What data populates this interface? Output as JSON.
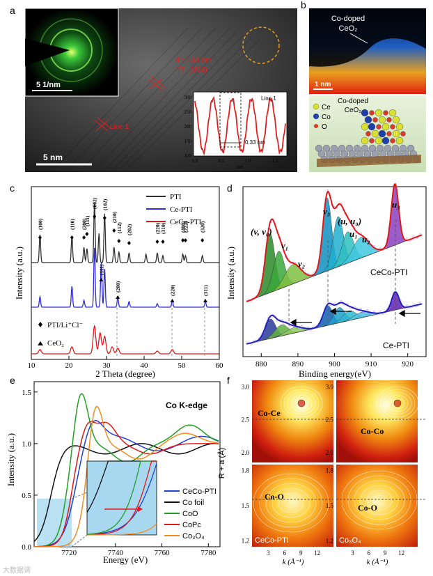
{
  "panels": {
    "a": {
      "label": "a",
      "inset_scale": "5 1/nm",
      "scale_bar": "5 nm",
      "d_spacing": "d=0.33 nm",
      "plane": "PTI (002)",
      "line_label": "Line 1",
      "profile_title": "Line 1",
      "profile_annotation": "0.33 nm",
      "profile_xlabel": "nm",
      "profile_yticks": [
        "300",
        "250",
        "200",
        "150",
        "100"
      ],
      "profile_xticks": [
        "0.0",
        "0.5",
        "1.0",
        "1.5"
      ]
    },
    "b": {
      "label": "b",
      "top_label_line1": "Co-doped",
      "top_label_line2": "CeO₂",
      "scale_bar": "1 nm",
      "legend": [
        {
          "name": "Ce",
          "color": "#d8e030"
        },
        {
          "name": "Co",
          "color": "#1f3fa8"
        },
        {
          "name": "O",
          "color": "#d83a2a"
        }
      ],
      "model_label_line1": "Co-doped",
      "model_label_line2": "CeO₂"
    },
    "c": {
      "label": "c",
      "ylabel": "Intensity (a.u.)",
      "xlabel": "2 Theta (degree)",
      "legend": [
        {
          "name": "PTI",
          "color": "#303030"
        },
        {
          "name": "Ce-PTI",
          "color": "#2b2bd8"
        },
        {
          "name": "CeCo-PTI",
          "color": "#e01818"
        }
      ],
      "peak_labels": [
        "(100)",
        "(110)",
        "(200)",
        "(111)",
        "(002)",
        "(102)",
        "(210)",
        "(112)",
        "(202)",
        "(220)",
        "(310)",
        "(400)",
        "(222)",
        "(320)"
      ],
      "ceo2_labels": [
        "(111)",
        "(200)",
        "(220)",
        "(311)"
      ],
      "marker_legend_1": "PTI/Li⁺Cl⁻",
      "marker_legend_2": "CeO₂",
      "xticks": [
        "10",
        "20",
        "30",
        "40",
        "50",
        "60"
      ]
    },
    "d": {
      "label": "d",
      "ylabel": "Intensity (a.u.)",
      "xlabel": "Binding energy(eV)",
      "top_sample": "CeCo-PTI",
      "bottom_sample": "Ce-PTI",
      "peak_v_v0": "(v, v₀)",
      "peak_v1": "v₁",
      "peak_v2": "v₂",
      "peak_v3": "v₃",
      "peak_u_u0": "(u, u₀)",
      "peak_u1": "u₁",
      "peak_u2": "u₂",
      "peak_u3": "u₃",
      "xticks": [
        "880",
        "890",
        "900",
        "910",
        "920"
      ]
    },
    "e": {
      "label": "e",
      "title": "Co K-edge",
      "ylabel": "Intensity (a.u.)",
      "xlabel": "Energy (eV)",
      "yticks": [
        "1.5",
        "1.0",
        "0.5",
        "0.0"
      ],
      "xticks": [
        "7720",
        "7740",
        "7760",
        "7780"
      ],
      "legend": [
        {
          "name": "CeCo-PTI",
          "color": "#1f3fd8"
        },
        {
          "name": "Co foil",
          "color": "#111111"
        },
        {
          "name": "CoO",
          "color": "#20a020"
        },
        {
          "name": "CoPc",
          "color": "#e01818"
        },
        {
          "name": "Co₃O₄",
          "color": "#f08c20"
        }
      ]
    },
    "f": {
      "label": "f",
      "ylabel": "R + a (Å)",
      "xlabel": "k (Å⁻¹)",
      "top_left": "Co-Ce",
      "top_right": "Co-Co",
      "bottom_left": "Co-O",
      "bottom_right": "Co-O",
      "sample_left": "CeCo-PTI",
      "sample_right": "Co₃O₄",
      "yticks_top": [
        "3.0",
        "2.5",
        "2.0"
      ],
      "yticks_bottom": [
        "1.8",
        "1.5",
        "1.2"
      ],
      "xticks": [
        "3",
        "6",
        "9",
        "12"
      ]
    }
  },
  "watermark": "大数据调"
}
